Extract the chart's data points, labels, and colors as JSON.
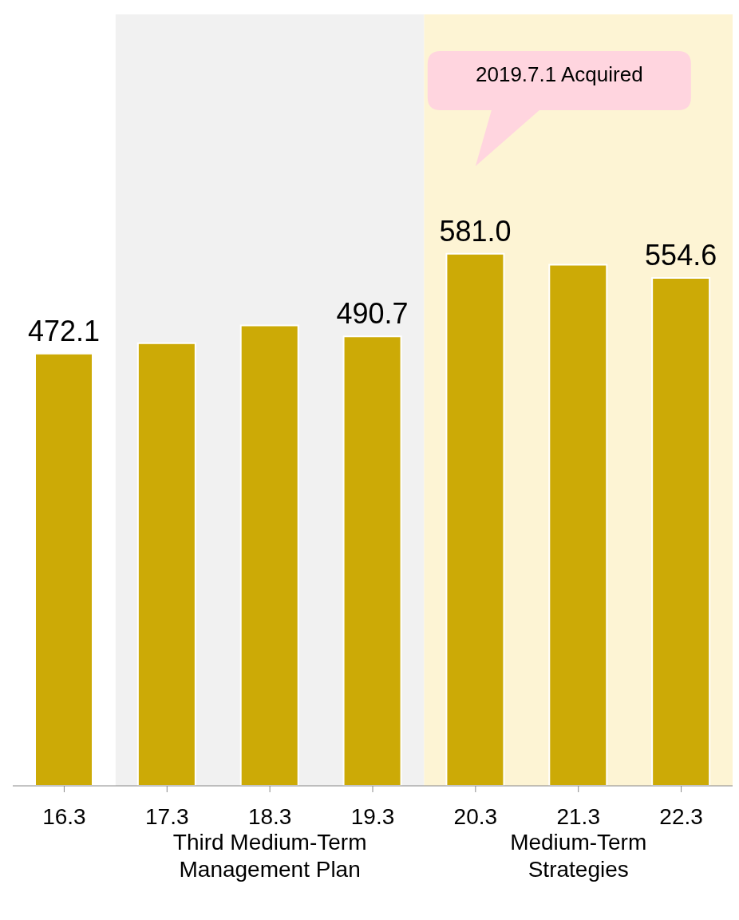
{
  "chart_data": {
    "type": "bar",
    "categories": [
      "16.3",
      "17.3",
      "18.3",
      "19.3",
      "20.3",
      "21.3",
      "22.3"
    ],
    "values": [
      472.1,
      483.4,
      502.8,
      490.7,
      581.0,
      569.1,
      554.6
    ],
    "value_labels": [
      "472.1",
      null,
      null,
      "490.7",
      "581.0",
      null,
      "554.6"
    ],
    "color": "#ccaa06",
    "bands": [
      {
        "axis": "x",
        "from": "17.3",
        "to": "19.3",
        "label": "Third Medium-Term Management Plan",
        "color": "#f1f1f1"
      },
      {
        "axis": "x",
        "from": "20.3",
        "to": "22.3",
        "label": "Medium-Term Strategies",
        "color": "#fdf4d4"
      }
    ],
    "annotations": [
      "2019.7.1 Acquired"
    ]
  }
}
